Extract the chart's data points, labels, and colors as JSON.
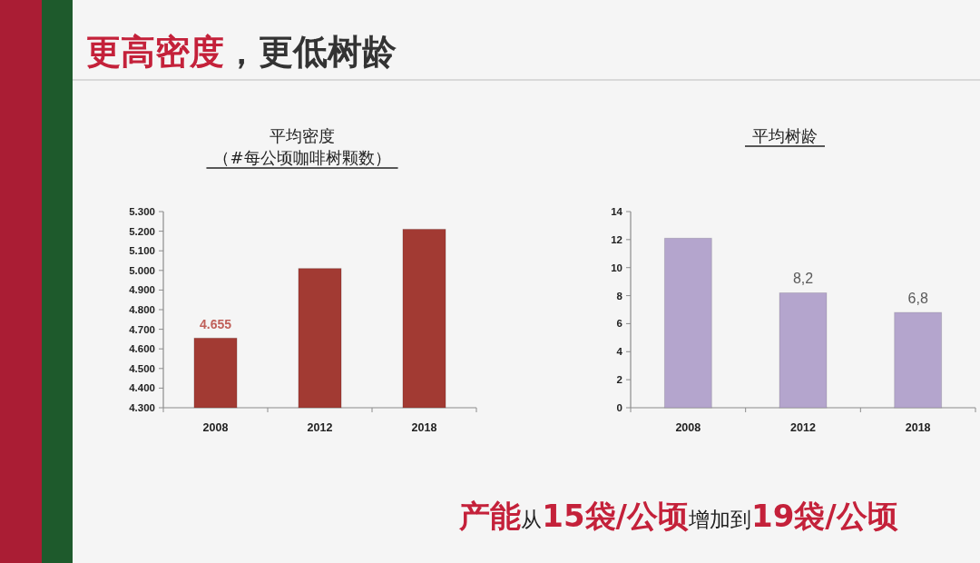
{
  "chart_data": [
    {
      "type": "other",
      "title": "更高密度，更低树龄",
      "annotations": [
        "**产能**从**15袋/公顷**增加到**19袋/公顷**"
      ]
    },
    {
      "type": "bar",
      "title": "平均密度",
      "subtitle": "（#每公顷咖啡树颗数）",
      "categories": [
        "2008",
        "2012",
        "2018"
      ],
      "values": [
        4655,
        5010,
        5210
      ],
      "color": "#a23a33",
      "value_labels": [
        "4.655",
        null,
        null
      ],
      "ylim": [
        4300,
        5300
      ],
      "yticks": [
        {
          "value": 4300,
          "label": "4.300"
        },
        {
          "value": 4400,
          "label": "4.400"
        },
        {
          "value": 4500,
          "label": "4.500"
        },
        {
          "value": 4600,
          "label": "4.600"
        },
        {
          "value": 4700,
          "label": "4.700"
        },
        {
          "value": 4800,
          "label": "4.800"
        },
        {
          "value": 4900,
          "label": "4.900"
        },
        {
          "value": 5000,
          "label": "5.000"
        },
        {
          "value": 5100,
          "label": "5.100"
        },
        {
          "value": 5200,
          "label": "5.200"
        },
        {
          "value": 5300,
          "label": "5.300"
        }
      ]
    },
    {
      "type": "bar",
      "title": "平均树龄",
      "categories": [
        "2008",
        "2012",
        "2018"
      ],
      "values": [
        12.1,
        8.2,
        6.8
      ],
      "color": "#b4a5cd",
      "value_labels": [
        null,
        "8,2",
        "6,8"
      ],
      "ylim": [
        0,
        14
      ],
      "yticks": [
        0,
        2,
        4,
        6,
        8,
        10,
        12,
        14
      ]
    }
  ]
}
